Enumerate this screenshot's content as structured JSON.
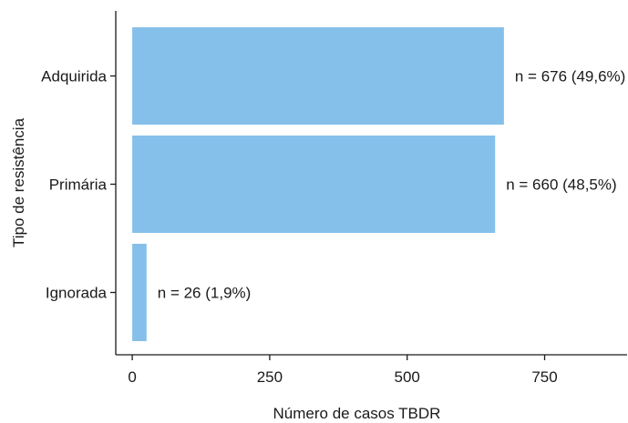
{
  "chart_data": {
    "type": "bar",
    "orientation": "horizontal",
    "categories": [
      "Adquirida",
      "Primária",
      "Ignorada"
    ],
    "values": [
      676,
      660,
      26
    ],
    "data_labels": [
      "n = 676 (49,6%)",
      "n = 660 (48,5%)",
      "n = 26 (1,9%)"
    ],
    "xlabel": "Número de casos TBDR",
    "ylabel": "Tipo de resistência",
    "xticks": [
      0,
      250,
      500,
      750
    ],
    "xtick_labels": [
      "0",
      "250",
      "500",
      "750"
    ],
    "xlim": [
      -30,
      900
    ],
    "grid": false,
    "bar_color": "#85c0ea",
    "axis_color": "#1a1a1a"
  }
}
